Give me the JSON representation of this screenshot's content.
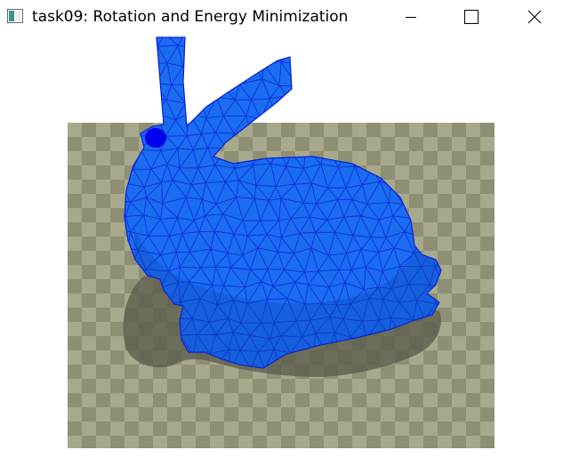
{
  "window": {
    "title": "task09: Rotation and Energy Minimization",
    "icons": {
      "app": "app-window-icon",
      "minimize": "minimize-icon",
      "maximize": "maximize-icon",
      "close": "close-icon"
    }
  },
  "scene": {
    "floor_colors": [
      "#8f8f74",
      "#a8a88c"
    ],
    "mesh_color": "#1a6cf0",
    "edge_color": "#0a1fd8",
    "handle_color": "#0000ee",
    "shadow_color": "#5a5a4c"
  }
}
